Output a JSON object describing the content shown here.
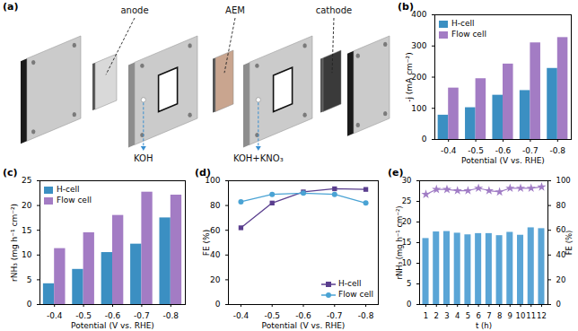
{
  "diagram": {
    "title": "(a)",
    "components": [
      "anode",
      "AEM",
      "cathode"
    ],
    "streams": [
      "KOH",
      "KOH+KNO₃"
    ]
  },
  "chart_data": [
    {
      "type": "bar",
      "title": "(b)",
      "categories": [
        "-0.4",
        "-0.5",
        "-0.6",
        "-0.7",
        "-0.8"
      ],
      "x_label": "Potential (V vs. RHE)",
      "y_label": "-j (mA cm⁻²)",
      "series": [
        {
          "name": "H-cell",
          "color": "#3b8fc2",
          "values": [
            78,
            102,
            142,
            157,
            228
          ]
        },
        {
          "name": "Flow cell",
          "color": "#a37cc4",
          "values": [
            165,
            195,
            242,
            310,
            327
          ]
        }
      ],
      "ylim": [
        0,
        400
      ],
      "yticks": [
        0,
        100,
        200,
        300,
        400
      ],
      "legend": "top-left"
    },
    {
      "type": "bar",
      "title": "(c)",
      "categories": [
        "-0.4",
        "-0.5",
        "-0.6",
        "-0.7",
        "-0.8"
      ],
      "x_label": "Potential (V vs. RHE)",
      "y_label": "rNH₃ (mg h⁻¹ cm⁻²)",
      "series": [
        {
          "name": "H-cell",
          "color": "#3b8fc2",
          "values": [
            4.2,
            7.1,
            10.5,
            12.2,
            17.5
          ]
        },
        {
          "name": "Flow cell",
          "color": "#a37cc4",
          "values": [
            11.3,
            14.5,
            18.0,
            22.7,
            22.1
          ]
        }
      ],
      "ylim": [
        0,
        25
      ],
      "yticks": [
        0,
        5,
        10,
        15,
        20,
        25
      ],
      "legend": "top-left"
    },
    {
      "type": "line",
      "title": "(d)",
      "categories": [
        "-0.4",
        "-0.5",
        "-0.6",
        "-0.7",
        "-0.8"
      ],
      "x_label": "Potential (V vs. RHE)",
      "y_label": "FE (%)",
      "series": [
        {
          "name": "H-cell",
          "color": "#5a3e8e",
          "marker": "square",
          "values": [
            62,
            82,
            91,
            93.5,
            93
          ]
        },
        {
          "name": "Flow cell",
          "color": "#4aa3d4",
          "marker": "circle",
          "values": [
            83,
            89,
            90,
            89,
            82
          ]
        }
      ],
      "ylim": [
        0,
        100
      ],
      "yticks": [
        0,
        20,
        40,
        60,
        80,
        100
      ],
      "legend": "bottom-right"
    },
    {
      "type": "bar",
      "title": "(e)",
      "categories": [
        "1",
        "2",
        "3",
        "4",
        "5",
        "6",
        "7",
        "8",
        "9",
        "10",
        "11",
        "12"
      ],
      "x_label": "t (h)",
      "y_label": "rNH₃ (mg h⁻¹ cm⁻²)",
      "y2_label": "FE (%)",
      "series": [
        {
          "type": "bar",
          "color": "#5aa5d6",
          "values": [
            16.0,
            17.6,
            17.7,
            17.3,
            16.9,
            17.2,
            17.2,
            16.7,
            17.5,
            16.8,
            18.6,
            18.4
          ]
        },
        {
          "type": "line",
          "axis": "y2",
          "marker": "star",
          "color": "#a07cc5",
          "values": [
            89,
            93,
            93,
            92,
            92,
            94,
            92,
            91,
            94,
            94,
            94,
            95
          ]
        }
      ],
      "ylim": [
        0,
        30
      ],
      "yticks": [
        0,
        5,
        10,
        15,
        20,
        25,
        30
      ],
      "y2lim": [
        0,
        100
      ],
      "y2ticks": [
        0,
        20,
        40,
        60,
        80,
        100
      ]
    }
  ]
}
